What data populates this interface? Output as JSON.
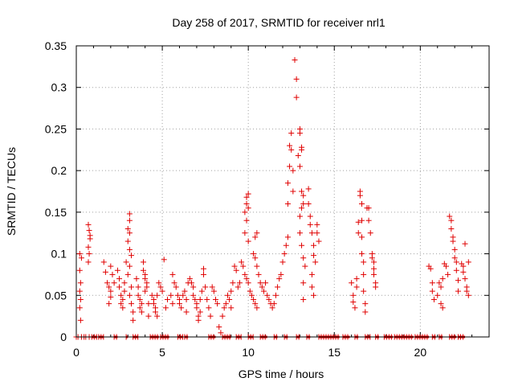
{
  "chart_data": {
    "type": "scatter",
    "title": "Day 258 of 2017, SRMTID for receiver nrl1",
    "xlabel": "GPS time / hours",
    "ylabel": "SRMTID / TECUs",
    "xlim": [
      0,
      24
    ],
    "ylim": [
      0,
      0.35
    ],
    "xticks": [
      0,
      5,
      10,
      15,
      20
    ],
    "xtick_labels": [
      "0",
      "5",
      "10",
      "15",
      "20"
    ],
    "yticks": [
      0,
      0.05,
      0.1,
      0.15,
      0.2,
      0.25,
      0.3,
      0.35
    ],
    "ytick_labels": [
      "0",
      "0.05",
      "0.1",
      "0.15",
      "0.2",
      "0.25",
      "0.3",
      "0.35"
    ],
    "grid": true,
    "marker": "+",
    "color": "#e00000",
    "series": [
      {
        "name": "SRMTID",
        "points": [
          [
            0.2,
            0.1
          ],
          [
            0.2,
            0.08
          ],
          [
            0.25,
            0.065
          ],
          [
            0.2,
            0.055
          ],
          [
            0.25,
            0.045
          ],
          [
            0.2,
            0.035
          ],
          [
            0.25,
            0.02
          ],
          [
            0.3,
            0.095
          ],
          [
            0.7,
            0.135
          ],
          [
            0.75,
            0.128
          ],
          [
            0.8,
            0.122
          ],
          [
            0.8,
            0.118
          ],
          [
            0.7,
            0.108
          ],
          [
            0.75,
            0.1
          ],
          [
            0.7,
            0.09
          ],
          [
            1.6,
            0.09
          ],
          [
            1.7,
            0.078
          ],
          [
            1.8,
            0.065
          ],
          [
            1.9,
            0.06
          ],
          [
            2.0,
            0.055
          ],
          [
            2.0,
            0.048
          ],
          [
            1.9,
            0.04
          ],
          [
            2.1,
            0.075
          ],
          [
            2.0,
            0.085
          ],
          [
            2.2,
            0.065
          ],
          [
            2.4,
            0.08
          ],
          [
            2.5,
            0.07
          ],
          [
            2.5,
            0.06
          ],
          [
            2.6,
            0.05
          ],
          [
            2.6,
            0.04
          ],
          [
            2.7,
            0.035
          ],
          [
            2.7,
            0.045
          ],
          [
            2.8,
            0.055
          ],
          [
            2.8,
            0.065
          ],
          [
            2.9,
            0.09
          ],
          [
            3.1,
            0.148
          ],
          [
            3.1,
            0.14
          ],
          [
            3.0,
            0.13
          ],
          [
            3.1,
            0.125
          ],
          [
            3.0,
            0.115
          ],
          [
            3.1,
            0.105
          ],
          [
            3.2,
            0.098
          ],
          [
            3.1,
            0.085
          ],
          [
            3.0,
            0.075
          ],
          [
            3.2,
            0.06
          ],
          [
            3.1,
            0.05
          ],
          [
            3.2,
            0.04
          ],
          [
            3.3,
            0.03
          ],
          [
            3.3,
            0.02
          ],
          [
            3.5,
            0.07
          ],
          [
            3.6,
            0.06
          ],
          [
            3.6,
            0.05
          ],
          [
            3.7,
            0.045
          ],
          [
            3.8,
            0.04
          ],
          [
            3.7,
            0.035
          ],
          [
            3.9,
            0.09
          ],
          [
            3.9,
            0.08
          ],
          [
            4.0,
            0.07
          ],
          [
            4.0,
            0.075
          ],
          [
            4.1,
            0.065
          ],
          [
            4.1,
            0.06
          ],
          [
            4.0,
            0.055
          ],
          [
            3.8,
            0.03
          ],
          [
            4.2,
            0.04
          ],
          [
            4.2,
            0.025
          ],
          [
            4.4,
            0.05
          ],
          [
            4.5,
            0.045
          ],
          [
            4.5,
            0.04
          ],
          [
            4.6,
            0.035
          ],
          [
            4.6,
            0.03
          ],
          [
            4.7,
            0.025
          ],
          [
            4.7,
            0.05
          ],
          [
            4.8,
            0.065
          ],
          [
            4.9,
            0.06
          ],
          [
            5.0,
            0.055
          ],
          [
            5.1,
            0.093
          ],
          [
            5.2,
            0.035
          ],
          [
            5.3,
            0.045
          ],
          [
            5.5,
            0.05
          ],
          [
            5.6,
            0.04
          ],
          [
            5.6,
            0.075
          ],
          [
            5.7,
            0.065
          ],
          [
            5.8,
            0.06
          ],
          [
            5.9,
            0.05
          ],
          [
            6.0,
            0.045
          ],
          [
            6.0,
            0.04
          ],
          [
            6.1,
            0.035
          ],
          [
            6.2,
            0.05
          ],
          [
            6.3,
            0.055
          ],
          [
            6.4,
            0.045
          ],
          [
            6.4,
            0.03
          ],
          [
            6.5,
            0.065
          ],
          [
            6.6,
            0.07
          ],
          [
            6.7,
            0.065
          ],
          [
            6.8,
            0.06
          ],
          [
            6.8,
            0.05
          ],
          [
            6.9,
            0.045
          ],
          [
            7.0,
            0.04
          ],
          [
            7.0,
            0.035
          ],
          [
            7.1,
            0.025
          ],
          [
            7.1,
            0.02
          ],
          [
            7.2,
            0.03
          ],
          [
            7.2,
            0.045
          ],
          [
            7.3,
            0.055
          ],
          [
            7.4,
            0.075
          ],
          [
            7.4,
            0.082
          ],
          [
            7.5,
            0.06
          ],
          [
            7.6,
            0.045
          ],
          [
            7.7,
            0.035
          ],
          [
            7.8,
            0.025
          ],
          [
            7.9,
            0.06
          ],
          [
            8.0,
            0.055
          ],
          [
            8.1,
            0.045
          ],
          [
            8.2,
            0.04
          ],
          [
            8.3,
            0.012
          ],
          [
            8.4,
            0.005
          ],
          [
            8.5,
            0.025
          ],
          [
            8.6,
            0.035
          ],
          [
            8.7,
            0.04
          ],
          [
            8.8,
            0.05
          ],
          [
            8.9,
            0.045
          ],
          [
            9.0,
            0.035
          ],
          [
            9.0,
            0.055
          ],
          [
            9.1,
            0.065
          ],
          [
            9.2,
            0.085
          ],
          [
            9.3,
            0.08
          ],
          [
            9.4,
            0.06
          ],
          [
            9.5,
            0.065
          ],
          [
            9.6,
            0.09
          ],
          [
            9.7,
            0.085
          ],
          [
            9.8,
            0.075
          ],
          [
            9.9,
            0.07
          ],
          [
            10.0,
            0.065
          ],
          [
            9.8,
            0.15
          ],
          [
            9.9,
            0.16
          ],
          [
            9.9,
            0.168
          ],
          [
            10.0,
            0.172
          ],
          [
            10.0,
            0.155
          ],
          [
            9.9,
            0.14
          ],
          [
            9.8,
            0.125
          ],
          [
            10.0,
            0.115
          ],
          [
            10.1,
            0.055
          ],
          [
            10.2,
            0.05
          ],
          [
            10.3,
            0.045
          ],
          [
            10.4,
            0.04
          ],
          [
            10.5,
            0.035
          ],
          [
            10.5,
            0.125
          ],
          [
            10.4,
            0.12
          ],
          [
            10.3,
            0.1
          ],
          [
            10.4,
            0.095
          ],
          [
            10.5,
            0.085
          ],
          [
            10.6,
            0.075
          ],
          [
            10.7,
            0.065
          ],
          [
            10.8,
            0.06
          ],
          [
            10.9,
            0.055
          ],
          [
            11.0,
            0.065
          ],
          [
            11.1,
            0.05
          ],
          [
            11.2,
            0.045
          ],
          [
            11.3,
            0.04
          ],
          [
            11.4,
            0.035
          ],
          [
            11.5,
            0.04
          ],
          [
            11.6,
            0.05
          ],
          [
            11.7,
            0.06
          ],
          [
            11.8,
            0.07
          ],
          [
            11.9,
            0.075
          ],
          [
            12.0,
            0.09
          ],
          [
            12.1,
            0.1
          ],
          [
            12.2,
            0.11
          ],
          [
            12.3,
            0.12
          ],
          [
            12.3,
            0.16
          ],
          [
            12.3,
            0.185
          ],
          [
            12.4,
            0.205
          ],
          [
            12.4,
            0.23
          ],
          [
            12.5,
            0.245
          ],
          [
            12.5,
            0.225
          ],
          [
            12.6,
            0.2
          ],
          [
            12.6,
            0.175
          ],
          [
            12.7,
            0.333
          ],
          [
            12.8,
            0.31
          ],
          [
            12.8,
            0.288
          ],
          [
            12.9,
            0.218
          ],
          [
            13.0,
            0.25
          ],
          [
            13.0,
            0.245
          ],
          [
            13.1,
            0.228
          ],
          [
            13.1,
            0.225
          ],
          [
            13.0,
            0.205
          ],
          [
            13.1,
            0.175
          ],
          [
            13.2,
            0.17
          ],
          [
            13.2,
            0.16
          ],
          [
            13.1,
            0.155
          ],
          [
            13.0,
            0.145
          ],
          [
            13.0,
            0.125
          ],
          [
            13.1,
            0.11
          ],
          [
            13.2,
            0.095
          ],
          [
            13.3,
            0.085
          ],
          [
            13.2,
            0.065
          ],
          [
            13.2,
            0.045
          ],
          [
            13.5,
            0.178
          ],
          [
            13.5,
            0.16
          ],
          [
            13.6,
            0.145
          ],
          [
            13.6,
            0.135
          ],
          [
            13.7,
            0.125
          ],
          [
            13.8,
            0.11
          ],
          [
            13.8,
            0.098
          ],
          [
            13.9,
            0.09
          ],
          [
            14.0,
            0.125
          ],
          [
            14.0,
            0.135
          ],
          [
            14.1,
            0.115
          ],
          [
            13.7,
            0.075
          ],
          [
            13.7,
            0.06
          ],
          [
            13.8,
            0.05
          ],
          [
            16.0,
            0.065
          ],
          [
            16.1,
            0.05
          ],
          [
            16.1,
            0.042
          ],
          [
            16.2,
            0.035
          ],
          [
            16.3,
            0.07
          ],
          [
            16.3,
            0.06
          ],
          [
            16.4,
            0.138
          ],
          [
            16.4,
            0.125
          ],
          [
            16.5,
            0.175
          ],
          [
            16.5,
            0.17
          ],
          [
            16.6,
            0.16
          ],
          [
            16.6,
            0.14
          ],
          [
            16.6,
            0.12
          ],
          [
            16.6,
            0.1
          ],
          [
            16.7,
            0.09
          ],
          [
            16.7,
            0.075
          ],
          [
            16.7,
            0.055
          ],
          [
            16.8,
            0.04
          ],
          [
            16.8,
            0.03
          ],
          [
            16.9,
            0.155
          ],
          [
            17.0,
            0.155
          ],
          [
            17.0,
            0.14
          ],
          [
            17.1,
            0.125
          ],
          [
            17.2,
            0.1
          ],
          [
            17.2,
            0.095
          ],
          [
            17.3,
            0.09
          ],
          [
            17.3,
            0.082
          ],
          [
            17.3,
            0.075
          ],
          [
            17.4,
            0.065
          ],
          [
            17.4,
            0.06
          ],
          [
            20.5,
            0.085
          ],
          [
            20.6,
            0.082
          ],
          [
            20.7,
            0.065
          ],
          [
            20.7,
            0.055
          ],
          [
            20.8,
            0.045
          ],
          [
            21.0,
            0.05
          ],
          [
            21.1,
            0.065
          ],
          [
            21.2,
            0.06
          ],
          [
            21.2,
            0.04
          ],
          [
            21.3,
            0.035
          ],
          [
            21.3,
            0.07
          ],
          [
            21.4,
            0.088
          ],
          [
            21.5,
            0.085
          ],
          [
            21.6,
            0.075
          ],
          [
            21.7,
            0.145
          ],
          [
            21.8,
            0.14
          ],
          [
            21.8,
            0.13
          ],
          [
            21.9,
            0.12
          ],
          [
            21.9,
            0.115
          ],
          [
            22.0,
            0.105
          ],
          [
            22.0,
            0.095
          ],
          [
            22.1,
            0.09
          ],
          [
            22.1,
            0.08
          ],
          [
            22.2,
            0.068
          ],
          [
            22.2,
            0.055
          ],
          [
            22.4,
            0.088
          ],
          [
            22.5,
            0.085
          ],
          [
            22.5,
            0.078
          ],
          [
            22.6,
            0.112
          ],
          [
            22.6,
            0.07
          ],
          [
            22.7,
            0.06
          ],
          [
            22.7,
            0.055
          ],
          [
            22.8,
            0.05
          ],
          [
            22.8,
            0.09
          ]
        ],
        "zero_ranges": [
          [
            0.9,
            1.2
          ],
          [
            1.3,
            1.6
          ],
          [
            2.2,
            2.4
          ],
          [
            2.9,
            3.0
          ],
          [
            3.3,
            3.6
          ],
          [
            4.3,
            4.8
          ],
          [
            4.9,
            5.4
          ],
          [
            5.9,
            6.2
          ],
          [
            6.3,
            6.5
          ],
          [
            7.7,
            8.1
          ],
          [
            8.5,
            9.0
          ],
          [
            9.3,
            9.6
          ],
          [
            10.0,
            10.3
          ],
          [
            10.7,
            11.1
          ],
          [
            11.5,
            11.7
          ],
          [
            12.1,
            12.3
          ],
          [
            12.8,
            13.0
          ],
          [
            13.4,
            13.6
          ],
          [
            14.1,
            15.3
          ],
          [
            15.5,
            15.9
          ],
          [
            16.2,
            16.4
          ],
          [
            16.8,
            17.1
          ],
          [
            17.4,
            17.6
          ],
          [
            17.9,
            18.4
          ],
          [
            18.5,
            19.6
          ],
          [
            19.7,
            20.5
          ],
          [
            20.7,
            20.9
          ],
          [
            21.1,
            21.3
          ],
          [
            21.7,
            22.1
          ],
          [
            22.2,
            22.6
          ]
        ],
        "zero_points": [
          0.0,
          0.1,
          0.3,
          0.45,
          0.55,
          0.75
        ]
      }
    ]
  }
}
